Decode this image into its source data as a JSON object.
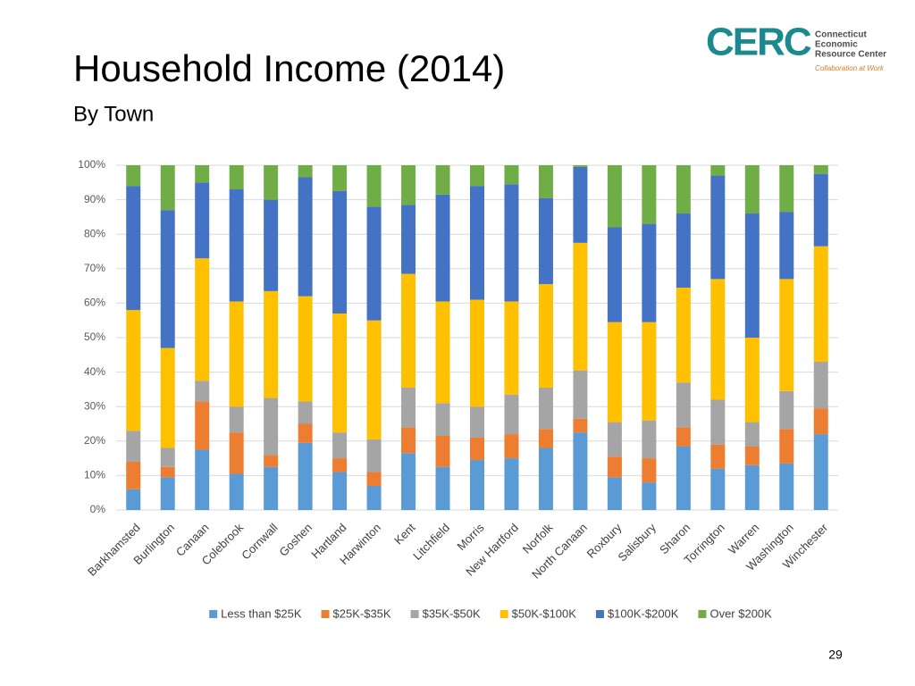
{
  "chart_data": {
    "type": "stacked_bar",
    "title": "Household Income (2014)",
    "subtitle": "By Town",
    "categories": [
      "Barkhamsted",
      "Burlington",
      "Canaan",
      "Colebrook",
      "Cornwall",
      "Goshen",
      "Hartland",
      "Harwinton",
      "Kent",
      "Litchfield",
      "Morris",
      "New Hartford",
      "Norfolk",
      "North Canaan",
      "Roxbury",
      "Salisbury",
      "Sharon",
      "Torrington",
      "Warren",
      "Washington",
      "Winchester"
    ],
    "series": [
      {
        "name": "Less than $25K",
        "color": "#5b9bd5",
        "values": [
          6,
          9.5,
          17.5,
          10.5,
          12.5,
          19.5,
          11,
          7,
          16.5,
          12.5,
          14.5,
          15,
          18,
          22.5,
          9.5,
          8,
          18.5,
          12,
          13,
          13.5,
          22
        ]
      },
      {
        "name": "$25K-$35K",
        "color": "#ed7d31",
        "values": [
          8,
          3,
          14,
          12,
          3.5,
          5.5,
          4,
          4,
          7.5,
          9,
          6.5,
          7,
          5.5,
          4,
          6,
          7,
          5.5,
          7,
          5.5,
          10,
          7.5
        ]
      },
      {
        "name": "$35K-$50K",
        "color": "#a5a5a5",
        "values": [
          9,
          5.5,
          6,
          7.5,
          16.5,
          6.5,
          7.5,
          9.5,
          11.5,
          9.5,
          9,
          11.5,
          12,
          14,
          10,
          11,
          13,
          13,
          7,
          11,
          13.5
        ]
      },
      {
        "name": "$50K-$100K",
        "color": "#ffc000",
        "values": [
          35,
          29,
          35.5,
          30.5,
          31,
          30.5,
          34.5,
          34.5,
          33,
          29.5,
          31,
          27,
          30,
          37,
          29,
          28.5,
          27.5,
          35,
          24.5,
          32.5,
          33.5
        ]
      },
      {
        "name": "$100K-$200K",
        "color": "#4472c4",
        "values": [
          36,
          40,
          22,
          32.5,
          26.5,
          34.5,
          35.5,
          33,
          20,
          31,
          33,
          34,
          25,
          22,
          27.5,
          28.5,
          21.5,
          30,
          36,
          19.5,
          21
        ]
      },
      {
        "name": "Over $200K",
        "color": "#70ad47",
        "values": [
          6,
          13,
          5,
          7,
          10,
          3.5,
          7.5,
          12,
          11.5,
          8.5,
          6,
          5.5,
          9.5,
          0.5,
          18,
          17,
          14,
          3,
          14,
          13.5,
          2.5
        ]
      }
    ],
    "ylim": [
      0,
      100
    ],
    "yticks": [
      {
        "value": 0,
        "label": "0%"
      },
      {
        "value": 10,
        "label": "10%"
      },
      {
        "value": 20,
        "label": "20%"
      },
      {
        "value": 30,
        "label": "30%"
      },
      {
        "value": 40,
        "label": "40%"
      },
      {
        "value": 50,
        "label": "50%"
      },
      {
        "value": 60,
        "label": "60%"
      },
      {
        "value": 70,
        "label": "70%"
      },
      {
        "value": 80,
        "label": "80%"
      },
      {
        "value": 90,
        "label": "90%"
      },
      {
        "value": 100,
        "label": "100%"
      }
    ],
    "grid": true,
    "legend": "bottom"
  },
  "logo": {
    "mark": "CERC",
    "lines": [
      "Connecticut",
      "Economic",
      "Resource Center"
    ],
    "tagline": "Collaboration at Work"
  },
  "page_number": 29
}
